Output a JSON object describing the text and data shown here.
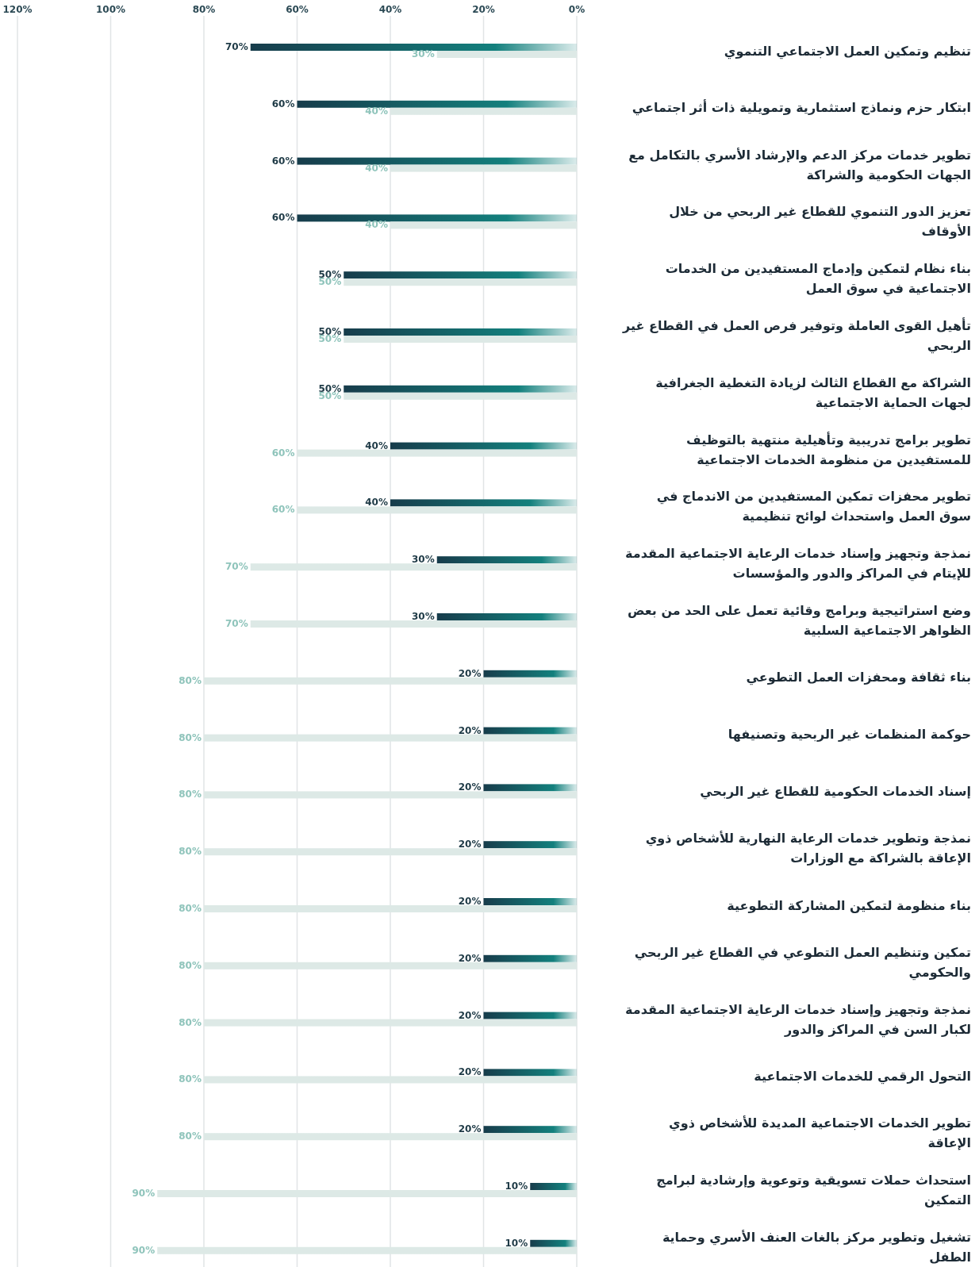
{
  "chart_data": {
    "type": "bar",
    "orientation": "horizontal",
    "categories": [
      "تنظيم وتمكين العمل الاجتماعي التنموي",
      "ابتكار حزم ونماذج استثمارية وتمويلية ذات أثر اجتماعي",
      "تطوير خدمات مركز الدعم والإرشاد الأسري بالتكامل مع الجهات الحكومية والشراكة",
      "تعزيز الدور التنموي للقطاع غير الربحي من خلال الأوقاف",
      "بناء نظام لتمكين وإدماج المستفيدين من الخدمات الاجتماعية في سوق العمل",
      "تأهيل القوى العاملة وتوفير فرص العمل في القطاع غير الربحي",
      "الشراكة مع القطاع الثالث لزيادة التغطية الجغرافية لجهات الحماية الاجتماعية",
      "تطوير برامج تدريبية وتأهيلية منتهية بالتوظيف للمستفيدين من منظومة الخدمات الاجتماعية",
      "تطوير محفزات تمكين المستفيدين من الاندماج في سوق العمل واستحداث لوائح تنظيمية",
      "نمذجة وتجهيز وإسناد خدمات الرعاية الاجتماعية المقدمة للإيتام في المراكز والدور والمؤسسات",
      "وضع استراتيجية وبرامج وقائية تعمل على الحد من بعض الظواهر الاجتماعية السلبية",
      "بناء ثقافة ومحفزات العمل التطوعي",
      "حوكمة المنظمات غير الربحية وتصنيفها",
      "إسناد الخدمات الحكومية للقطاع غير الربحي",
      "نمذجة وتطوير خدمات الرعاية النهارية للأشخاص ذوي الإعاقة بالشراكة مع الوزارات",
      "بناء منظومة لتمكين المشاركة التطوعية",
      "تمكين وتنظيم العمل التطوعي في القطاع غير الربحي والحكومي",
      "نمذجة وتجهيز وإسناد خدمات الرعاية الاجتماعية المقدمة لكبار السن في المراكز والدور",
      "التحول الرقمي للخدمات الاجتماعية",
      "تطوير الخدمات الاجتماعية المديدة للأشخاص ذوي الإعاقة",
      "استحداث حملات تسويقية وتوعوية وإرشادية لبرامج التمكين",
      "تشغيل وتطوير مركز بالغات العنف الأسري وحماية الطفل"
    ],
    "series": [
      {
        "color": "#13807d",
        "values": [
          70,
          60,
          60,
          60,
          50,
          50,
          50,
          40,
          40,
          30,
          30,
          20,
          20,
          20,
          20,
          20,
          20,
          20,
          20,
          20,
          10,
          10
        ],
        "value_labels": [
          "70%",
          "60%",
          "60%",
          "60%",
          "50%",
          "50%",
          "50%",
          "40%",
          "40%",
          "30%",
          "30%",
          "20%",
          "20%",
          "20%",
          "20%",
          "20%",
          "20%",
          "20%",
          "20%",
          "20%",
          "10%",
          "10%"
        ]
      },
      {
        "color": "#dde9e6",
        "values": [
          30,
          40,
          40,
          40,
          50,
          50,
          50,
          60,
          60,
          70,
          70,
          80,
          80,
          80,
          80,
          80,
          80,
          80,
          80,
          80,
          90,
          90
        ],
        "value_labels": [
          "30%",
          "40%",
          "40%",
          "40%",
          "50%",
          "50%",
          "50%",
          "60%",
          "60%",
          "70%",
          "70%",
          "80%",
          "80%",
          "80%",
          "80%",
          "80%",
          "80%",
          "80%",
          "80%",
          "80%",
          "90%",
          "90%"
        ]
      }
    ],
    "xlim": [
      120,
      0
    ],
    "xticks": [
      {
        "value": 120,
        "label": "120%"
      },
      {
        "value": 100,
        "label": "100%"
      },
      {
        "value": 80,
        "label": "80%"
      },
      {
        "value": 60,
        "label": "60%"
      },
      {
        "value": 40,
        "label": "40%"
      },
      {
        "value": 20,
        "label": "20%"
      },
      {
        "value": 0,
        "label": "0%"
      }
    ],
    "grid": "x"
  }
}
